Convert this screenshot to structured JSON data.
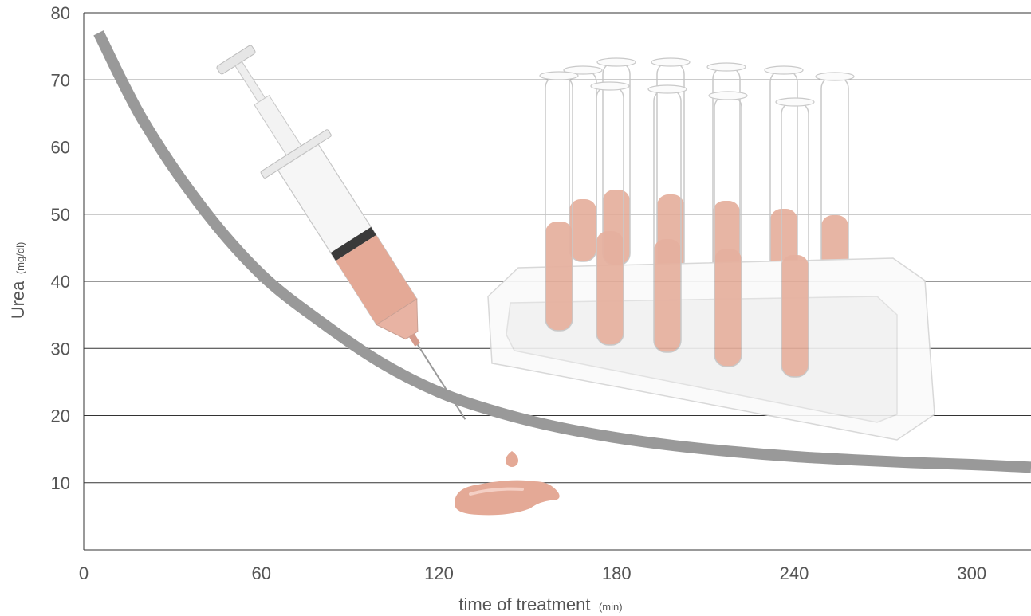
{
  "chart_data": {
    "type": "line",
    "title": "",
    "xlabel": "time of treatment",
    "xlabel_unit": "(min)",
    "ylabel": "Urea",
    "ylabel_unit": "(mg/dl)",
    "xlim": [
      0,
      320
    ],
    "ylim": [
      0,
      80
    ],
    "x_ticks": [
      0,
      60,
      120,
      180,
      240,
      300
    ],
    "y_ticks": [
      10,
      20,
      30,
      40,
      50,
      60,
      70,
      80
    ],
    "grid": "horizontal",
    "legend": "none",
    "series": [
      {
        "color": "#999999",
        "x": [
          5,
          20,
          40,
          60,
          80,
          100,
          120,
          140,
          160,
          180,
          200,
          220,
          240,
          260,
          280,
          300,
          320
        ],
        "y": [
          77,
          64,
          51,
          41,
          34,
          28,
          23.5,
          20.5,
          18.3,
          16.7,
          15.5,
          14.6,
          13.9,
          13.4,
          13.0,
          12.7,
          12.3
        ]
      }
    ],
    "background_illustration": [
      "syringe-icon",
      "blood-drop-icon",
      "test-tube-rack-icon"
    ]
  }
}
